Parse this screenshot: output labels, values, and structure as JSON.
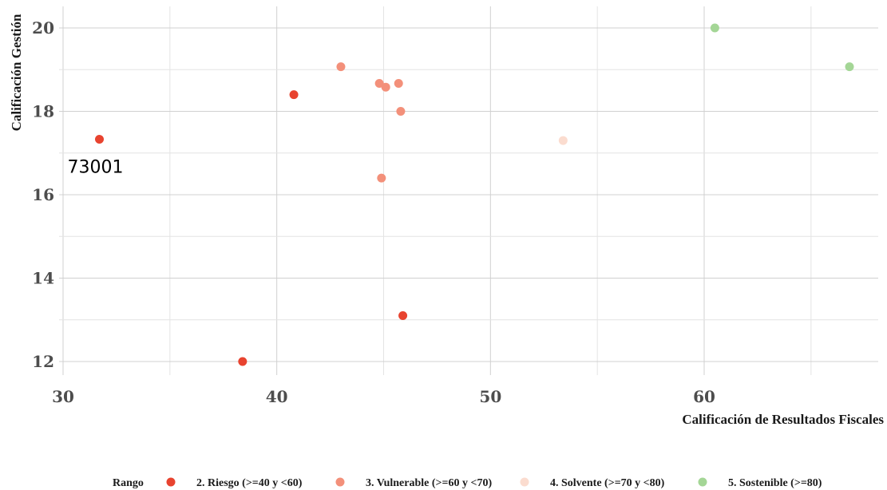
{
  "chart_data": {
    "type": "scatter",
    "title": "",
    "xlabel": "Calificación de Resultados Fiscales",
    "ylabel": "Calificación Gestión",
    "xlim": [
      29,
      68
    ],
    "ylim": [
      11.6,
      20.5
    ],
    "x_ticks": [
      30,
      40,
      50,
      60
    ],
    "y_ticks": [
      12,
      14,
      16,
      18,
      20
    ],
    "grid": true,
    "legend_position": "bottom",
    "legend_title": "Rango",
    "series": [
      {
        "name": "2. Riesgo (>=40 y <60)",
        "color": "#e8432f",
        "points": [
          {
            "x": 31.7,
            "y": 17.33,
            "label": "73001"
          },
          {
            "x": 40.8,
            "y": 18.4
          },
          {
            "x": 38.4,
            "y": 12.0
          },
          {
            "x": 45.9,
            "y": 13.1
          }
        ]
      },
      {
        "name": "3. Vulnerable (>=60 y <70)",
        "color": "#f3907a",
        "points": [
          {
            "x": 43.0,
            "y": 19.07
          },
          {
            "x": 44.8,
            "y": 18.67
          },
          {
            "x": 45.1,
            "y": 18.58
          },
          {
            "x": 45.7,
            "y": 18.67
          },
          {
            "x": 45.8,
            "y": 18.0
          },
          {
            "x": 44.9,
            "y": 16.4
          }
        ]
      },
      {
        "name": "4. Solvente (>=70 y <80)",
        "color": "#fbdccf",
        "points": [
          {
            "x": 53.4,
            "y": 17.3
          }
        ]
      },
      {
        "name": "5. Sostenible (>=80)",
        "color": "#a4d696",
        "points": [
          {
            "x": 60.5,
            "y": 20.0
          },
          {
            "x": 66.8,
            "y": 19.07
          }
        ]
      }
    ]
  }
}
